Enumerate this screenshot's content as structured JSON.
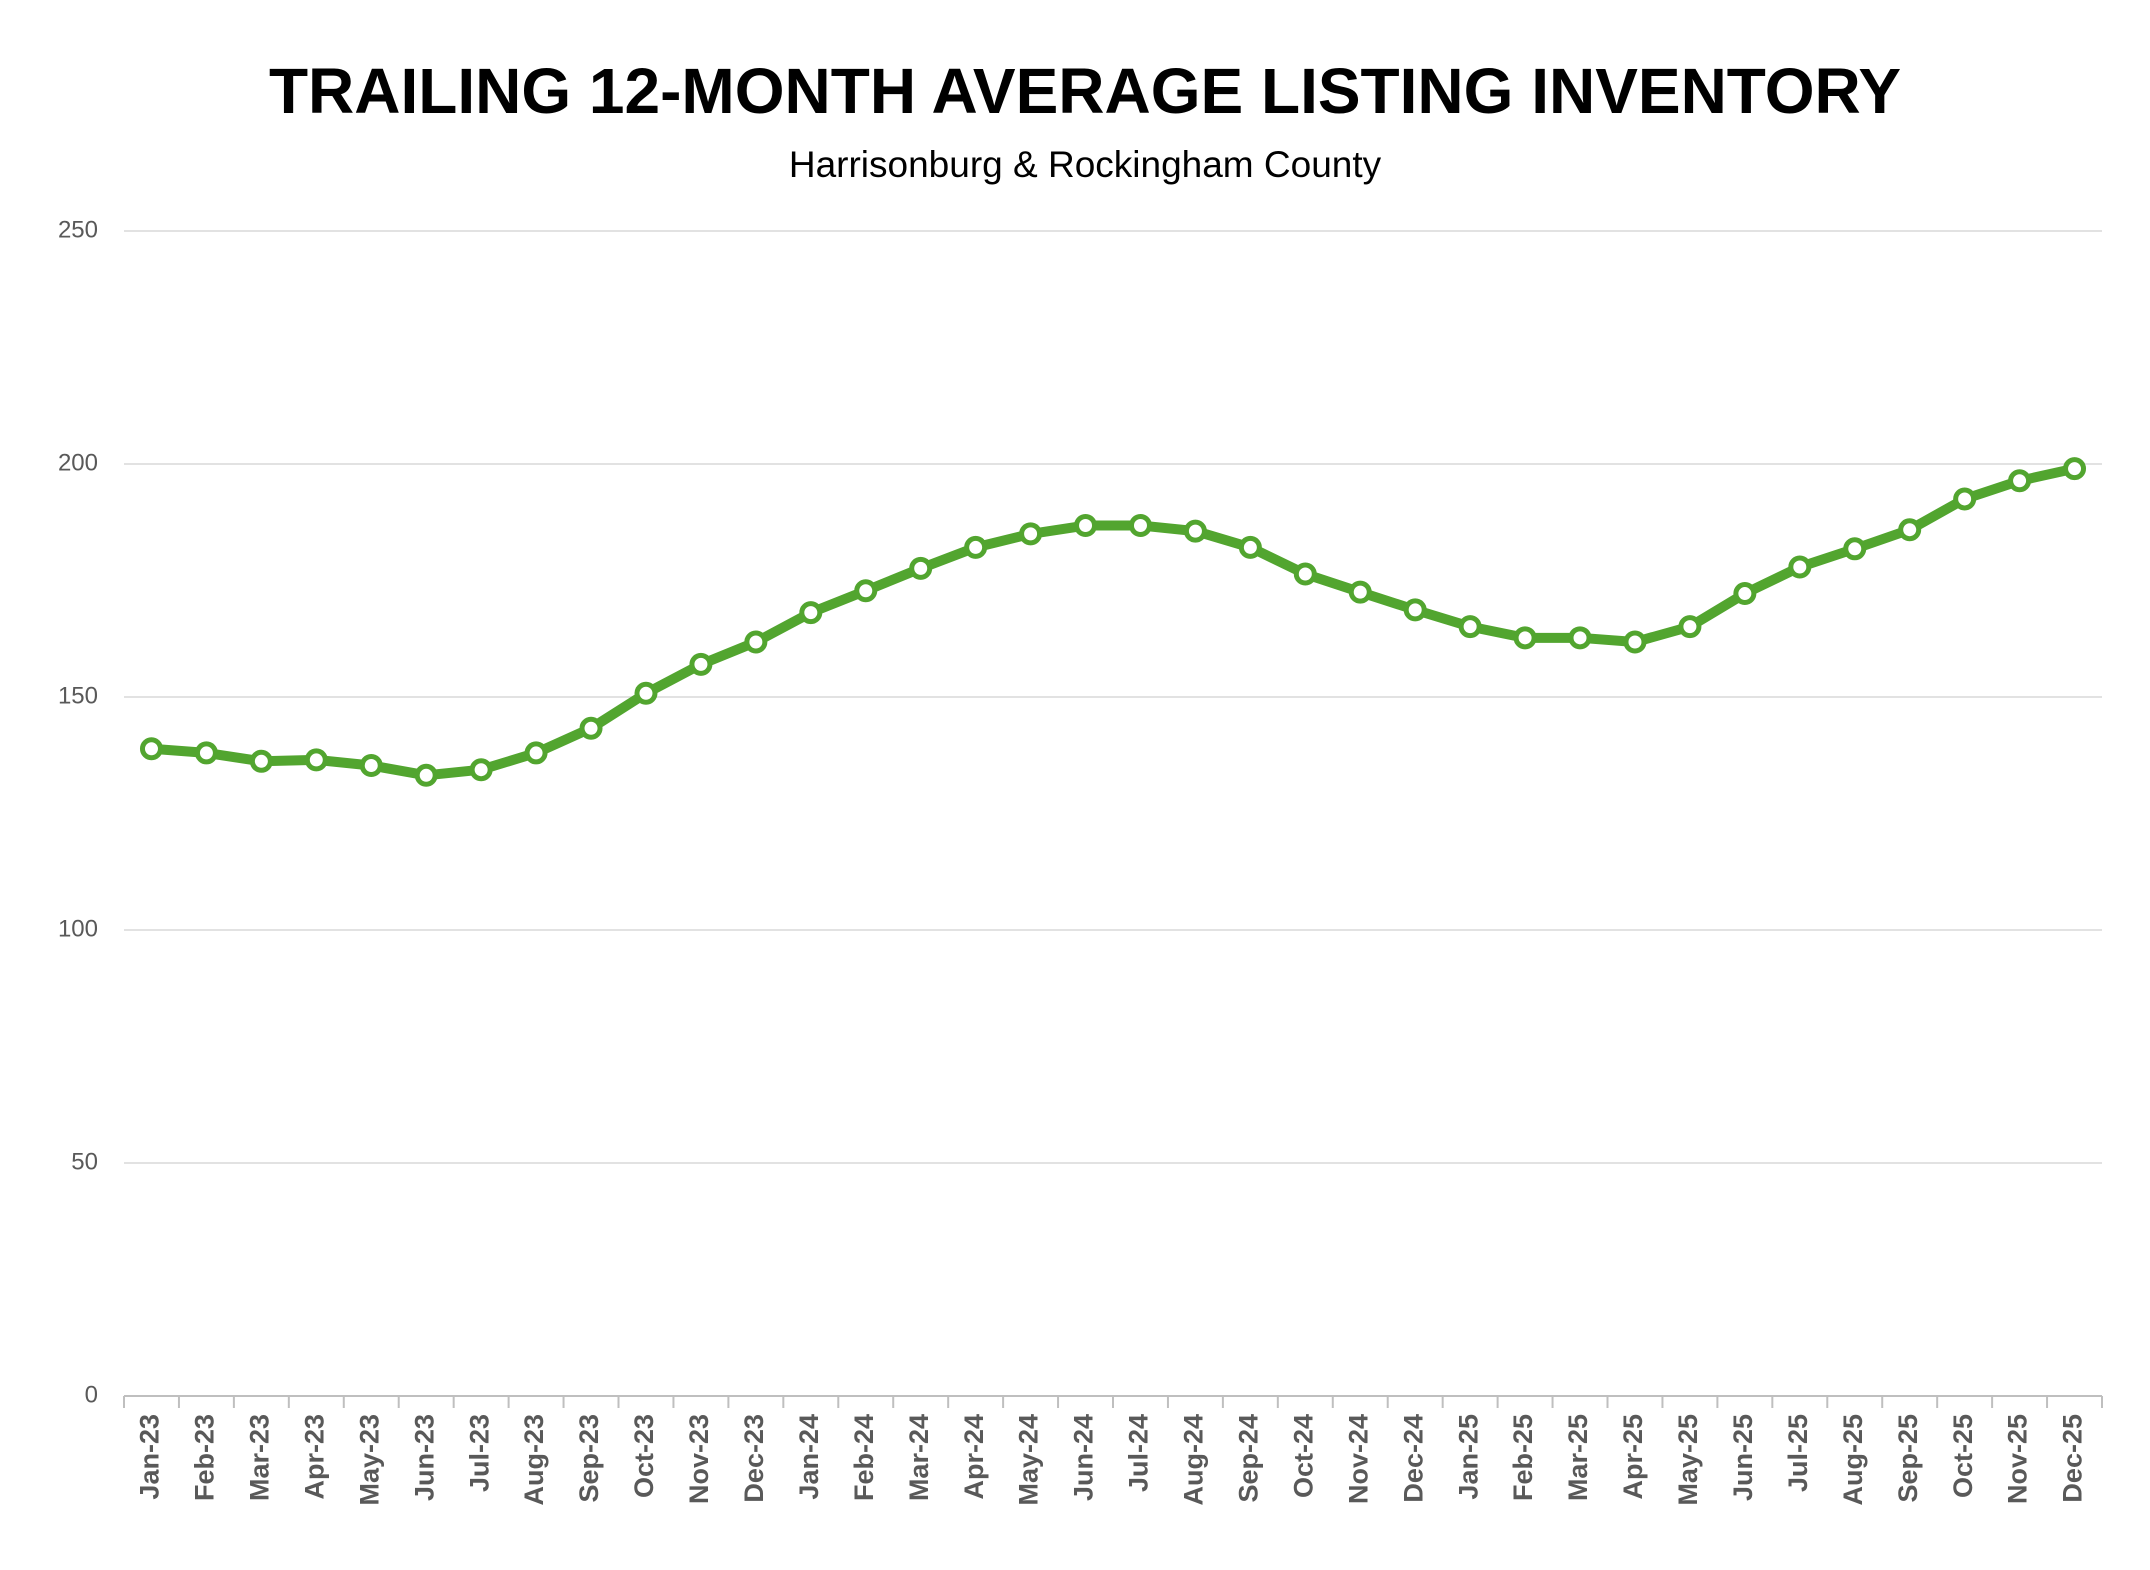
{
  "chart_data": {
    "type": "line",
    "title": "TRAILING 12-MONTH AVERAGE LISTING INVENTORY",
    "subtitle": "Harrisonburg & Rockingham County",
    "categories": [
      "Jan-23",
      "Feb-23",
      "Mar-23",
      "Apr-23",
      "May-23",
      "Jun-23",
      "Jul-23",
      "Aug-23",
      "Sep-23",
      "Oct-23",
      "Nov-23",
      "Dec-23",
      "Jan-24",
      "Feb-24",
      "Mar-24",
      "Apr-24",
      "May-24",
      "Jun-24",
      "Jul-24",
      "Aug-24",
      "Sep-24",
      "Oct-24",
      "Nov-24",
      "Dec-24",
      "Jan-25",
      "Feb-25",
      "Mar-25",
      "Apr-25",
      "May-25",
      "Jun-25",
      "Jul-25",
      "Aug-25",
      "Sep-25",
      "Oct-25",
      "Nov-25",
      "Dec-25"
    ],
    "series": [
      {
        "color": "#52a52f",
        "values": [
          138.9,
          138.0,
          136.2,
          136.5,
          135.3,
          133.2,
          134.4,
          138.0,
          143.3,
          150.8,
          157.0,
          161.8,
          168.1,
          172.8,
          177.6,
          182.1,
          185.0,
          186.8,
          186.8,
          185.6,
          182.1,
          176.4,
          172.5,
          168.7,
          165.1,
          162.7,
          162.7,
          161.8,
          165.1,
          172.2,
          177.9,
          181.8,
          185.9,
          192.5,
          196.4,
          199.0
        ]
      }
    ],
    "ylim": [
      0,
      250
    ],
    "yticks": [
      0,
      50,
      100,
      150,
      200,
      250
    ],
    "grid": true
  }
}
